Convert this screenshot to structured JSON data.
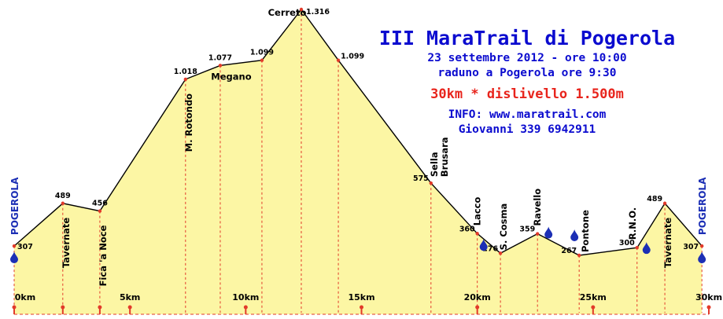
{
  "header": {
    "title": "III MaraTrail di Pogerola",
    "date_line": "23 settembre 2012 - ore 10:00",
    "meeting_line": "raduno a Pogerola ore 9:30",
    "distance_line": "30km * dislivello 1.500m",
    "info_line": "INFO: www.maratrail.com",
    "contact_line": "Giovanni 339 6942911"
  },
  "colors": {
    "fill": "#fcf6a4",
    "line": "#000000",
    "dash": "#e23a2a",
    "marker": "#e23a2a",
    "water": "#1c2fb5",
    "blue_text": "#0b0bcf"
  },
  "chart_data": {
    "type": "area",
    "xlim": [
      0,
      30
    ],
    "ylim": [
      0,
      1316
    ],
    "x_ticks": [
      {
        "km": 0,
        "label": "0km"
      },
      {
        "km": 5,
        "label": "5km"
      },
      {
        "km": 10,
        "label": "10km"
      },
      {
        "km": 15,
        "label": "15km"
      },
      {
        "km": 20,
        "label": "20km"
      },
      {
        "km": 25,
        "label": "25km"
      },
      {
        "km": 30,
        "label": "30km"
      }
    ],
    "points": [
      {
        "km": 0.0,
        "alt": 307,
        "alt_label": "307",
        "place": "POGEROLA",
        "place_style": "blue-vertical"
      },
      {
        "km": 2.1,
        "alt": 489,
        "alt_label": "489",
        "place": "Tavernate",
        "place_style": "vertical"
      },
      {
        "km": 3.7,
        "alt": 456,
        "alt_label": "456",
        "place": "Fica 'a Noce",
        "place_style": "vertical"
      },
      {
        "km": 7.4,
        "alt": 1018,
        "alt_label": "1.018",
        "place": "M. Rotondo",
        "place_style": "vertical"
      },
      {
        "km": 8.9,
        "alt": 1077,
        "alt_label": "1.077",
        "place": "Megano",
        "place_style": "horizontal"
      },
      {
        "km": 10.7,
        "alt": 1099,
        "alt_label": "1.099",
        "place": "",
        "place_style": "none"
      },
      {
        "km": 12.4,
        "alt": 1316,
        "alt_label": "1.316",
        "place": "Cerreto",
        "place_style": "horizontal"
      },
      {
        "km": 14.0,
        "alt": 1099,
        "alt_label": "1.099",
        "place": "",
        "place_style": "none"
      },
      {
        "km": 18.0,
        "alt": 575,
        "alt_label": "575",
        "place": "Sella Brusara",
        "place_style": "vertical"
      },
      {
        "km": 20.0,
        "alt": 360,
        "alt_label": "360",
        "place": "Lacco",
        "place_style": "vertical",
        "water": true
      },
      {
        "km": 21.0,
        "alt": 276,
        "alt_label": "276",
        "place": "S. Cosma",
        "place_style": "vertical"
      },
      {
        "km": 22.6,
        "alt": 359,
        "alt_label": "359",
        "place": "Ravello",
        "place_style": "vertical",
        "water": true
      },
      {
        "km": 24.4,
        "alt": 267,
        "alt_label": "267",
        "place": "Pontone",
        "place_style": "vertical",
        "water": true
      },
      {
        "km": 26.9,
        "alt": 300,
        "alt_label": "300",
        "place": "R.N.O.",
        "place_style": "vertical",
        "water": true
      },
      {
        "km": 28.1,
        "alt": 489,
        "alt_label": "489",
        "place": "Tavernate",
        "place_style": "vertical"
      },
      {
        "km": 29.7,
        "alt": 307,
        "alt_label": "307",
        "place": "POGEROLA",
        "place_style": "blue-vertical",
        "water": true
      }
    ],
    "start_water": true,
    "marker_km": [
      0,
      2.1,
      3.7,
      5,
      10,
      15,
      20,
      25,
      30
    ]
  }
}
